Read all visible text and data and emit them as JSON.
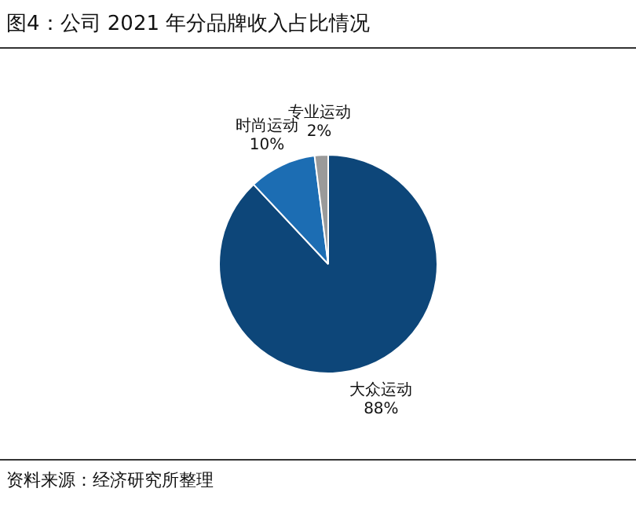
{
  "chart_data": {
    "type": "pie",
    "title": "图4：公司 2021 年分品牌收入占比情况",
    "categories": [
      "大众运动",
      "时尚运动",
      "专业运动"
    ],
    "values": [
      88,
      10,
      2
    ],
    "colors": [
      "#0d4679",
      "#1c6db3",
      "#9a9a9a"
    ],
    "value_labels": [
      "88%",
      "10%",
      "2%"
    ],
    "legend": false,
    "annotations": [
      "资料来源：经济研究所整理"
    ]
  }
}
